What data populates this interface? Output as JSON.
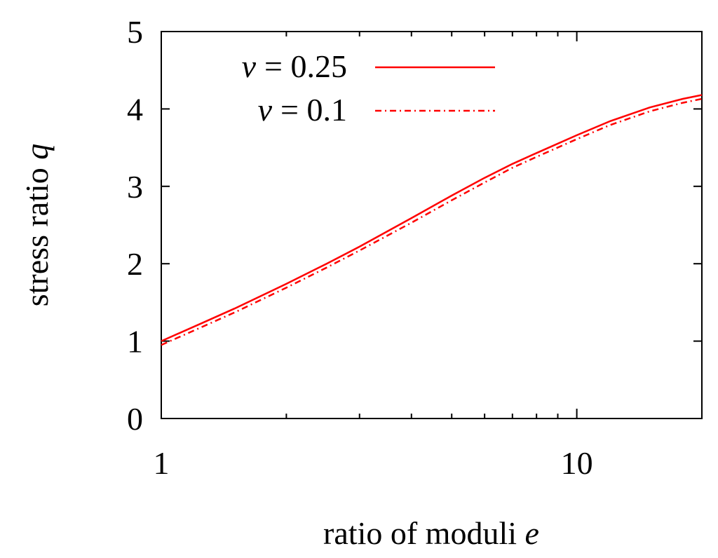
{
  "chart_data": {
    "type": "line",
    "xlabel": "ratio of moduli",
    "xlabel_symbol": "e",
    "ylabel": "stress ratio",
    "ylabel_symbol": "q",
    "xscale": "log",
    "xlim": [
      1,
      20
    ],
    "ylim": [
      0,
      5
    ],
    "x_ticks": [
      1,
      10
    ],
    "x_tick_labels": [
      "1",
      "10"
    ],
    "y_ticks": [
      0,
      1,
      2,
      3,
      4,
      5
    ],
    "y_tick_labels": [
      "0",
      "1",
      "2",
      "3",
      "4",
      "5"
    ],
    "legend_position": "top-left",
    "grid": false,
    "series": [
      {
        "name_symbol": "ν",
        "name_value": "= 0.25",
        "color": "#ff0000",
        "style": "solid",
        "x": [
          1,
          1.25,
          1.5,
          2,
          2.5,
          3,
          4,
          5,
          6,
          7,
          8,
          10,
          12,
          15,
          18,
          20
        ],
        "y": [
          1.0,
          1.23,
          1.42,
          1.74,
          2.0,
          2.22,
          2.59,
          2.88,
          3.11,
          3.29,
          3.43,
          3.66,
          3.84,
          4.02,
          4.13,
          4.18
        ]
      },
      {
        "name_symbol": "ν",
        "name_value": "= 0.1",
        "color": "#ff0000",
        "style": "dash-dot",
        "x": [
          1,
          1.25,
          1.5,
          2,
          2.5,
          3,
          4,
          5,
          6,
          7,
          8,
          10,
          12,
          15,
          18,
          20
        ],
        "y": [
          0.95,
          1.18,
          1.37,
          1.69,
          1.95,
          2.17,
          2.53,
          2.82,
          3.05,
          3.24,
          3.38,
          3.61,
          3.79,
          3.97,
          4.08,
          4.13
        ]
      }
    ]
  }
}
